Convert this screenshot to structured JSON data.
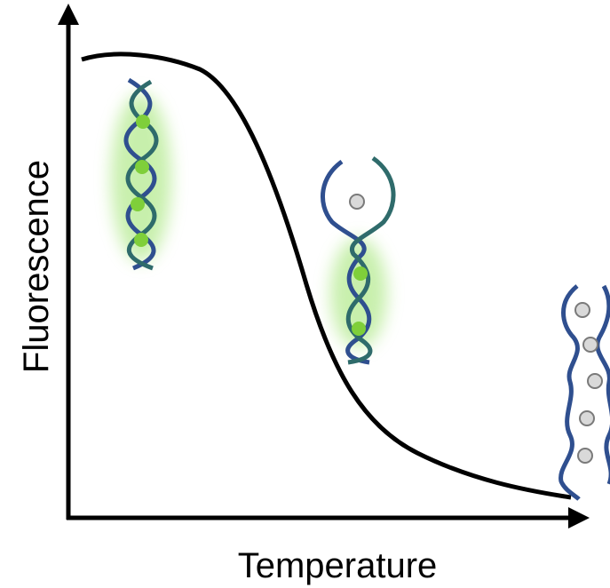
{
  "figure": {
    "x_axis_label": "Temperature",
    "y_axis_label": "Fluorescence",
    "curve_color": "#000000",
    "strand_outer_color": "#2f4f8f",
    "strand_inner_color": "#2f6b6b",
    "dye_bound_color": "#7fcf3a",
    "glow_color": "#9be36a",
    "dye_free_color": "#d9d9d9",
    "dye_free_stroke": "#7a7a7a"
  },
  "stages": [
    {
      "name": "double-stranded-dna-bound-dye",
      "bound_dyes": 4,
      "free_dyes": 0
    },
    {
      "name": "partially-melted-dna",
      "bound_dyes": 2,
      "free_dyes": 1
    },
    {
      "name": "single-stranded-dna-free-dye",
      "bound_dyes": 0,
      "free_dyes": 5
    }
  ]
}
